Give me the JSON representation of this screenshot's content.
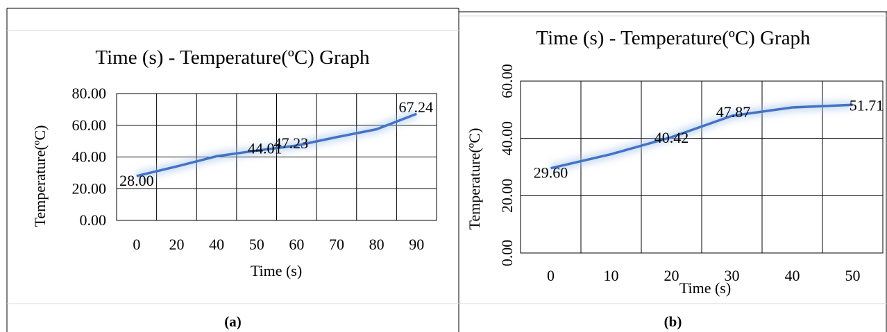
{
  "panels": [
    {
      "caption": "(a)",
      "chart_data": {
        "type": "line",
        "title": "Time (s) - Temperature(ºC) Graph",
        "xlabel": "Time (s)",
        "ylabel": "Temperature(ºC)",
        "categories": [
          "0",
          "20",
          "40",
          "50",
          "60",
          "70",
          "80",
          "90"
        ],
        "series": [
          {
            "values": [
              28.0,
              34.0,
              40.5,
              44.01,
              47.23,
              52.5,
              57.5,
              67.24
            ]
          }
        ],
        "data_labels": [
          {
            "index": 0,
            "text": "28.00"
          },
          {
            "index": 3,
            "text": "44.01"
          },
          {
            "index": 4,
            "text": "47.23"
          },
          {
            "index": 7,
            "text": "67.24"
          }
        ],
        "y_ticks": [
          "0.00",
          "20.00",
          "40.00",
          "60.00",
          "80.00"
        ],
        "ylim": [
          0,
          80
        ],
        "grid": true,
        "line_color": "#4472C4"
      }
    },
    {
      "caption": "(b)",
      "chart_data": {
        "type": "line",
        "title": "Time (s) - Temperature(ºC) Graph",
        "xlabel": "Time (s)",
        "ylabel": "Temperature(ºC)",
        "categories": [
          "0",
          "10",
          "20",
          "30",
          "40",
          "50"
        ],
        "series": [
          {
            "values": [
              29.6,
              34.5,
              40.42,
              47.87,
              50.8,
              51.71
            ]
          }
        ],
        "data_labels": [
          {
            "index": 0,
            "text": "29.60"
          },
          {
            "index": 2,
            "text": "40.42"
          },
          {
            "index": 3,
            "text": "47.87"
          },
          {
            "index": 5,
            "text": "51.71"
          }
        ],
        "y_ticks": [
          "0.00",
          "20.00",
          "40.00",
          "60.00"
        ],
        "ylim": [
          0,
          60
        ],
        "grid": true,
        "line_color": "#4472C4"
      }
    }
  ]
}
